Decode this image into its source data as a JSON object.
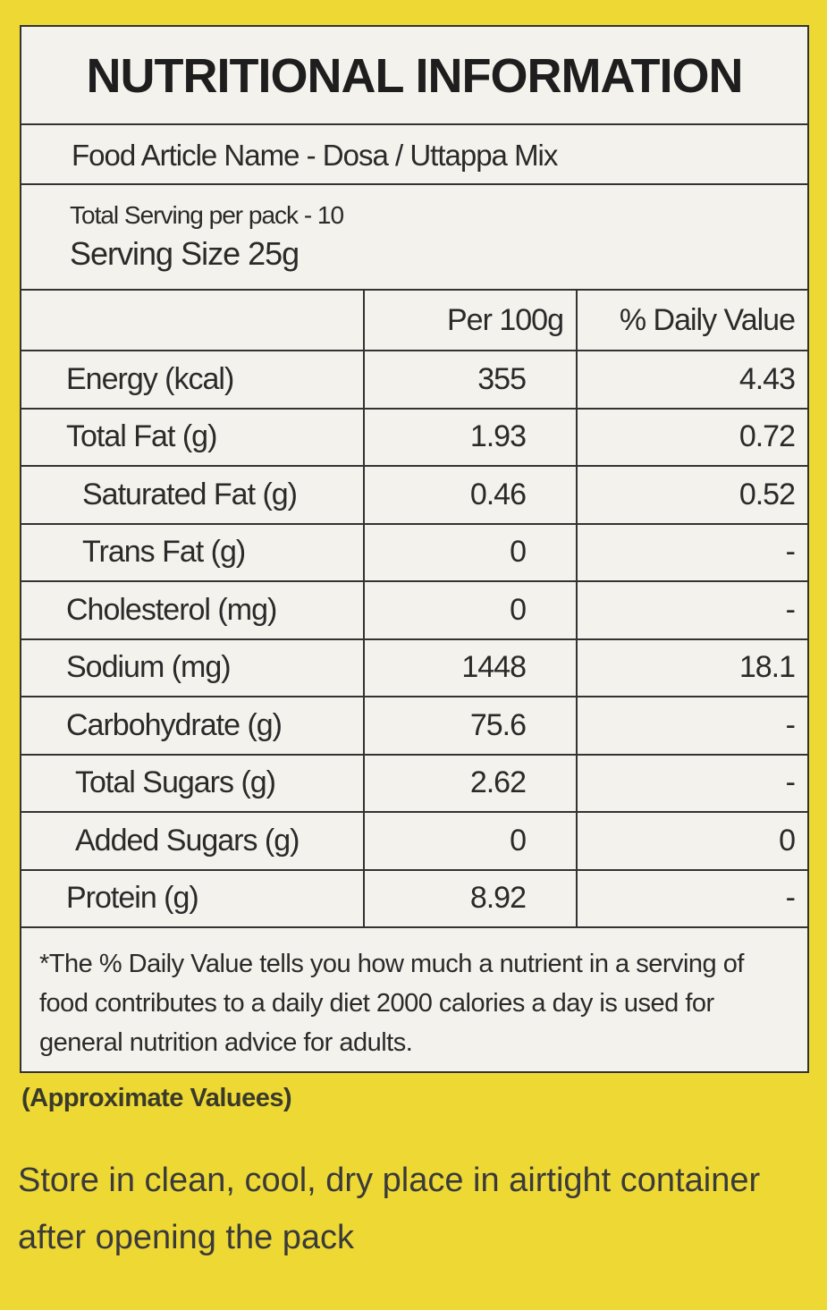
{
  "header": {
    "title": "NUTRITIONAL INFORMATION",
    "food_name": "Food Article Name - Dosa / Uttappa Mix",
    "servings_per_pack": "Total Serving per pack - 10",
    "serving_size": "Serving Size 25g"
  },
  "table": {
    "columns": [
      "Per 100g",
      "% Daily Value"
    ],
    "rows": [
      [
        "Energy (kcal)",
        "355",
        "4.43"
      ],
      [
        "Total Fat (g)",
        "1.93",
        "0.72"
      ],
      [
        "Saturated Fat (g)",
        "0.46",
        "0.52"
      ],
      [
        "Trans Fat (g)",
        "0",
        "-"
      ],
      [
        "Cholesterol (mg)",
        "0",
        "-"
      ],
      [
        "Sodium (mg)",
        "1448",
        "18.1"
      ],
      [
        "Carbohydrate (g)",
        "75.6",
        "-"
      ],
      [
        "Total Sugars (g)",
        "2.62",
        "-"
      ],
      [
        "Added Sugars (g)",
        "0",
        "0"
      ],
      [
        "Protein (g)",
        "8.92",
        "-"
      ]
    ]
  },
  "footnote": "*The % Daily Value tells you how much a nutrient in a serving of food contributes to a daily diet 2000 calories a day is used for general nutrition advice for adults.",
  "note": "(Approximate Valuees)",
  "storage": "Store in clean, cool, dry place in airtight container after opening the pack"
}
